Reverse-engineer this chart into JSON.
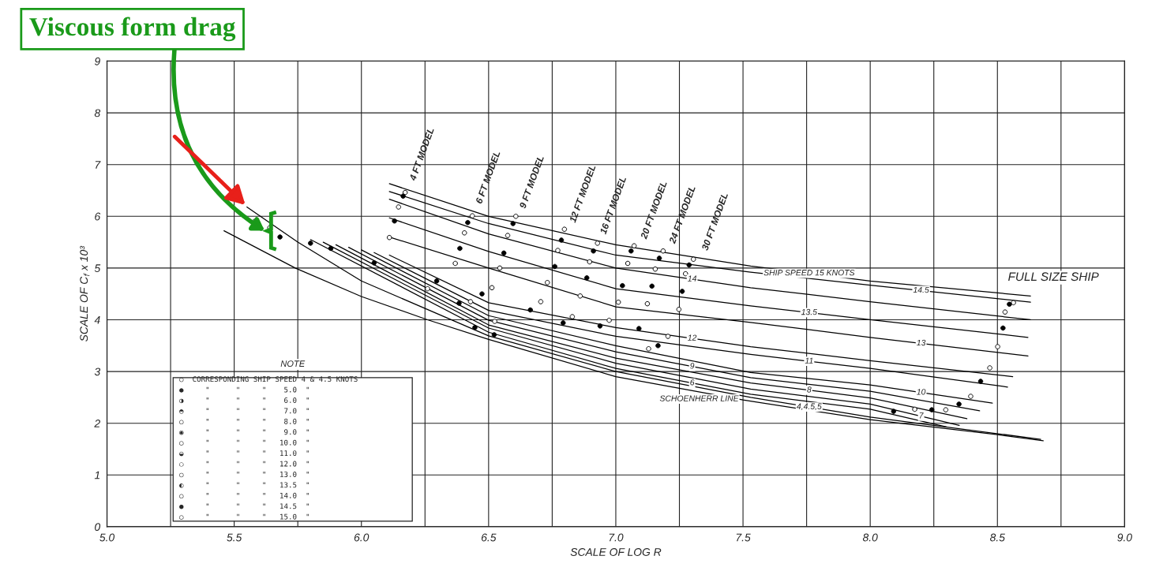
{
  "chart_data": {
    "type": "line",
    "xlabel": "SCALE OF LOG R",
    "ylabel": "SCALE OF C$_{f}$ x 10³",
    "xlim": [
      5.0,
      9.0
    ],
    "xticks": [
      {
        "value": 5.0,
        "label": "5.0"
      },
      {
        "value": 5.25,
        "label": null
      },
      {
        "value": 5.5,
        "label": "5.5"
      },
      {
        "value": 5.75,
        "label": null
      },
      {
        "value": 6.0,
        "label": "6.0"
      },
      {
        "value": 6.25,
        "label": null
      },
      {
        "value": 6.5,
        "label": "6.5"
      },
      {
        "value": 6.75,
        "label": null
      },
      {
        "value": 7.0,
        "label": "7.0"
      },
      {
        "value": 7.25,
        "label": null
      },
      {
        "value": 7.5,
        "label": "7.5"
      },
      {
        "value": 7.75,
        "label": null
      },
      {
        "value": 8.0,
        "label": "8.0"
      },
      {
        "value": 8.25,
        "label": null
      },
      {
        "value": 8.5,
        "label": "8.5"
      },
      {
        "value": 8.75,
        "label": null
      },
      {
        "value": 9.0,
        "label": "9.0"
      }
    ],
    "ylim": [
      0,
      9
    ],
    "yticks": [
      0,
      1,
      2,
      3,
      4,
      5,
      6,
      7,
      8,
      9
    ],
    "grid": true,
    "series": [
      {
        "name": "SHIP SPEED 15 KNOTS",
        "color": "#000000",
        "x": [
          6.11,
          6.5,
          7.0,
          7.53,
          8.0,
          8.63
        ],
        "values": [
          6.63,
          6.0,
          5.45,
          5.04,
          4.75,
          4.46
        ]
      },
      {
        "name": "14.5",
        "color": "#000000",
        "x": [
          6.11,
          6.5,
          7.0,
          7.53,
          8.0,
          8.63
        ],
        "values": [
          6.48,
          5.86,
          5.25,
          4.92,
          4.67,
          4.34
        ]
      },
      {
        "name": "14",
        "color": "#000000",
        "x": [
          6.11,
          6.5,
          7.0,
          7.53,
          8.0,
          8.63
        ],
        "values": [
          6.33,
          5.66,
          5.0,
          4.62,
          4.35,
          4.0
        ]
      },
      {
        "name": "13.5",
        "color": "#000000",
        "x": [
          6.11,
          6.5,
          7.0,
          7.53,
          8.0,
          8.62
        ],
        "values": [
          5.97,
          5.32,
          4.6,
          4.27,
          4.0,
          3.66
        ]
      },
      {
        "name": "13",
        "color": "#000000",
        "x": [
          6.11,
          6.5,
          7.0,
          7.53,
          8.0,
          8.62
        ],
        "values": [
          5.6,
          5.0,
          4.25,
          3.95,
          3.66,
          3.3
        ]
      },
      {
        "name": "12",
        "color": "#000000",
        "x": [
          6.11,
          6.5,
          7.0,
          7.53,
          8.0,
          8.56
        ],
        "values": [
          5.25,
          4.33,
          3.85,
          3.48,
          3.21,
          2.9
        ]
      },
      {
        "name": "11",
        "color": "#000000",
        "x": [
          6.05,
          6.5,
          7.0,
          7.53,
          8.0,
          8.54
        ],
        "values": [
          5.3,
          4.18,
          3.68,
          3.33,
          3.06,
          2.7
        ]
      },
      {
        "name": "10",
        "color": "#000000",
        "x": [
          6.0,
          6.5,
          7.0,
          7.53,
          8.0,
          8.48
        ],
        "values": [
          5.35,
          4.08,
          3.5,
          2.98,
          2.74,
          2.39
        ]
      },
      {
        "name": "9",
        "color": "#000000",
        "x": [
          5.95,
          6.5,
          7.0,
          7.53,
          8.0,
          8.43
        ],
        "values": [
          5.4,
          3.99,
          3.38,
          2.88,
          2.62,
          2.24
        ]
      },
      {
        "name": "8",
        "color": "#000000",
        "x": [
          5.9,
          6.5,
          7.0,
          7.53,
          8.0,
          8.38
        ],
        "values": [
          5.45,
          3.9,
          3.26,
          2.78,
          2.49,
          2.09
        ]
      },
      {
        "name": "7",
        "color": "#000000",
        "x": [
          5.85,
          6.5,
          7.0,
          7.53,
          8.0,
          8.35
        ],
        "values": [
          5.5,
          3.84,
          3.16,
          2.66,
          2.37,
          1.96
        ]
      },
      {
        "name": "6",
        "color": "#000000",
        "x": [
          5.8,
          6.5,
          7.0,
          7.53,
          8.0,
          8.3
        ],
        "values": [
          5.55,
          3.76,
          3.06,
          2.56,
          2.27,
          1.93
        ]
      },
      {
        "name": "4,4.5,5",
        "color": "#000000",
        "x": [
          5.55,
          5.75,
          6.0,
          6.5,
          7.0,
          7.53,
          8.0,
          8.67
        ],
        "values": [
          6.18,
          5.5,
          4.75,
          3.69,
          3.0,
          2.5,
          2.12,
          1.69
        ]
      },
      {
        "name": "SCHOENHERR LINE",
        "color": "#000000",
        "x": [
          5.46,
          5.74,
          6.0,
          6.26,
          6.5,
          7.0,
          7.5,
          8.0,
          8.5,
          8.68
        ],
        "values": [
          5.72,
          5.0,
          4.45,
          4.0,
          3.62,
          2.9,
          2.45,
          2.07,
          1.78,
          1.66
        ]
      },
      {
        "type": "scatter",
        "marker": "circle",
        "x": [
          6.172,
          6.146,
          6.11,
          6.436,
          6.405,
          6.369,
          6.607,
          6.575,
          6.544,
          6.513,
          6.798,
          6.772,
          6.731,
          6.86,
          6.928,
          6.897,
          7.01,
          7.072,
          7.047,
          7.124,
          7.186,
          7.155,
          7.248,
          7.305,
          7.274,
          6.829,
          6.974,
          7.205,
          7.129,
          6.705,
          6.429,
          6.26,
          6.524,
          5.58,
          5.64,
          6.164,
          6.13,
          6.418,
          6.387,
          6.596,
          6.56,
          6.474,
          6.786,
          6.76,
          6.886,
          6.912,
          7.026,
          7.06,
          7.142,
          7.171,
          7.261,
          7.288,
          6.664,
          6.793,
          6.938,
          7.091,
          7.166,
          6.296,
          6.384,
          6.446,
          6.522,
          5.68,
          5.8,
          5.88,
          6.05
        ],
        "values": [
          6.46,
          6.18,
          5.59,
          6.01,
          5.68,
          5.09,
          6.0,
          5.63,
          5.0,
          4.62,
          5.75,
          5.34,
          4.72,
          4.46,
          5.48,
          5.12,
          4.34,
          5.43,
          5.09,
          4.31,
          5.33,
          4.98,
          4.2,
          5.17,
          4.89,
          4.06,
          3.99,
          3.68,
          3.44,
          4.35,
          4.35,
          4.6,
          3.97,
          5.9,
          5.78,
          6.39,
          5.91,
          5.88,
          5.38,
          5.86,
          5.29,
          4.5,
          5.54,
          5.03,
          4.81,
          5.33,
          4.66,
          5.33,
          4.65,
          5.19,
          4.55,
          5.06,
          4.19,
          3.94,
          3.88,
          3.83,
          3.5,
          4.75,
          4.32,
          3.85,
          3.71,
          5.6,
          5.48,
          5.38,
          5.1
        ],
        "colors": [
          "#ffffff",
          "#ffffff",
          "#ffffff",
          "#ffffff",
          "#ffffff",
          "#ffffff",
          "#ffffff",
          "#ffffff",
          "#ffffff",
          "#ffffff",
          "#ffffff",
          "#ffffff",
          "#ffffff",
          "#ffffff",
          "#ffffff",
          "#ffffff",
          "#ffffff",
          "#ffffff",
          "#ffffff",
          "#ffffff",
          "#ffffff",
          "#ffffff",
          "#ffffff",
          "#ffffff",
          "#ffffff",
          "#ffffff",
          "#ffffff",
          "#ffffff",
          "#ffffff",
          "#ffffff",
          "#ffffff",
          "#ffffff",
          "#ffffff",
          "#ffffff",
          "#ffffff",
          "#000000",
          "#000000",
          "#000000",
          "#000000",
          "#000000",
          "#000000",
          "#000000",
          "#000000",
          "#000000",
          "#000000",
          "#000000",
          "#000000",
          "#000000",
          "#000000",
          "#000000",
          "#000000",
          "#000000",
          "#000000",
          "#000000",
          "#000000",
          "#000000",
          "#000000",
          "#000000",
          "#000000",
          "#000000",
          "#000000",
          "#000000",
          "#000000",
          "#000000",
          "#000000"
        ]
      },
      {
        "type": "scatter",
        "marker": "circle",
        "x": [
          8.563,
          8.53,
          8.547,
          8.522,
          8.501,
          8.47,
          8.434,
          8.395,
          8.349,
          8.297,
          8.242,
          8.175,
          8.092
        ],
        "values": [
          4.33,
          4.15,
          4.3,
          3.84,
          3.48,
          3.07,
          2.81,
          2.52,
          2.37,
          2.26,
          2.26,
          2.27,
          2.23
        ],
        "colors": [
          "#ffffff",
          "#ffffff",
          "#000000",
          "#000000",
          "#ffffff",
          "#ffffff",
          "#000000",
          "#ffffff",
          "#000000",
          "#ffffff",
          "#000000",
          "#ffffff",
          "#000000"
        ]
      }
    ],
    "annotations": [
      "Viscous form drag",
      "4 FT MODEL",
      "6 FT MODEL",
      "9 FT MODEL",
      "12 FT MODEL",
      "16 FT MODEL",
      "20 FT MODEL",
      "24 FT MODEL",
      "30 FT MODEL",
      "FULL SIZE SHIP",
      "NOTE",
      "○  CORRESPONDING SHIP SPEED 4 & 4.5 KNOTS",
      "●     \"      \"     \"    5.0  \"",
      "◑     \"      \"     \"    6.0  \"",
      "◓     \"      \"     \"    7.0  \"",
      "○     \"      \"     \"    8.0  \"",
      "◉     \"      \"     \"    9.0  \"",
      "○     \"      \"     \"   10.0  \"",
      "◒     \"      \"     \"   11.0  \"",
      "○     \"      \"     \"   12.0  \"",
      "○     \"      \"     \"   13.0  \"",
      "◐     \"      \"     \"   13.5  \"",
      "○     \"      \"     \"   14.0  \"",
      "●     \"      \"     \"   14.5  \"",
      "○     \"      \"     \"   15.0  \""
    ]
  }
}
